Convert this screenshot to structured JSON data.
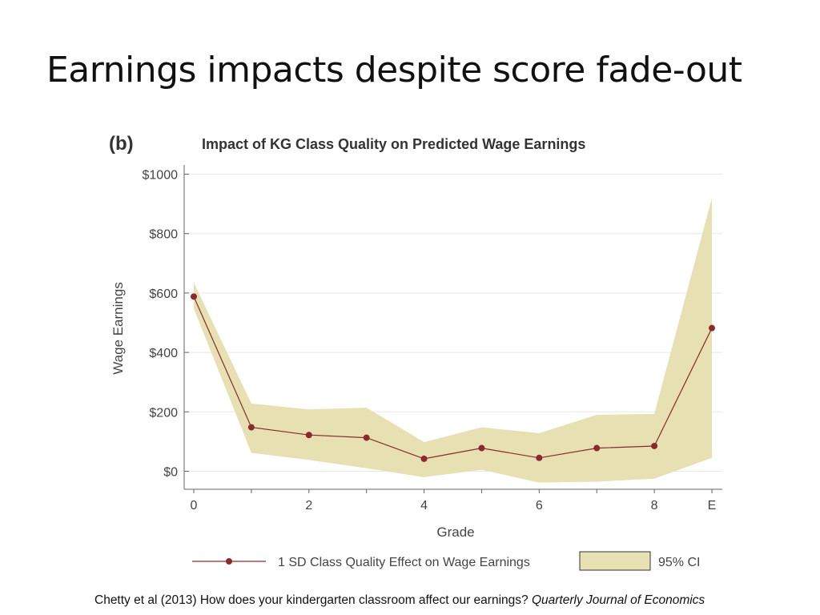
{
  "slide": {
    "title": "Earnings impacts despite score fade-out"
  },
  "panel_label": "(b)",
  "caption": {
    "text": "Chetty et al (2013)  How does your kindergarten classroom affect our earnings?",
    "journal": "Quarterly Journal of Economics"
  },
  "colors": {
    "line": "#8b2a2a",
    "marker": "#8b2a2a",
    "ci_fill": "#e6e0b2",
    "axis": "#666666",
    "grid": "#e8e8e8",
    "text": "#444444"
  },
  "chart_data": {
    "type": "line",
    "title": "Impact of KG Class Quality on Predicted Wage Earnings",
    "xlabel": "Grade",
    "ylabel": "Wage Earnings",
    "categories": [
      "0",
      "1",
      "2",
      "3",
      "4",
      "5",
      "6",
      "7",
      "8",
      "E"
    ],
    "x_tick_labels": [
      "0",
      "",
      "2",
      "",
      "4",
      "",
      "6",
      "",
      "8",
      "E"
    ],
    "y_ticks": [
      0,
      200,
      400,
      600,
      800,
      1000
    ],
    "y_tick_labels": [
      "$0",
      "$200",
      "$400",
      "$600",
      "$800",
      "$1000"
    ],
    "ylim": [
      -60,
      1000
    ],
    "grid": true,
    "series": [
      {
        "name": "1 SD Class Quality Effect on Wage Earnings",
        "values": [
          588,
          148,
          122,
          113,
          42,
          78,
          45,
          78,
          85,
          482
        ]
      }
    ],
    "ci": {
      "name": "95% CI",
      "upper": [
        635,
        228,
        208,
        214,
        98,
        148,
        128,
        190,
        193,
        920
      ],
      "lower": [
        548,
        62,
        38,
        10,
        -20,
        5,
        -38,
        -35,
        -25,
        45
      ]
    },
    "legend_position": "bottom"
  }
}
